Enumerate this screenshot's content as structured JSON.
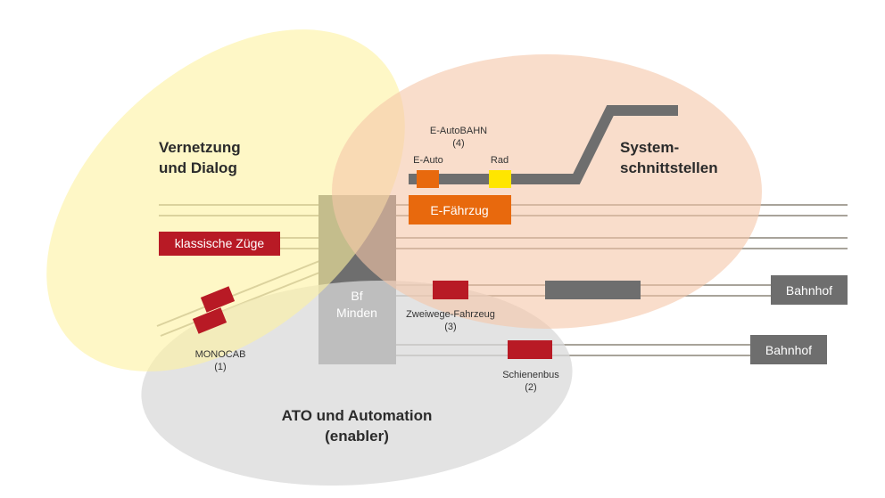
{
  "circles": {
    "vernetzung": {
      "line1": "Vernetzung",
      "line2": "und Dialog",
      "color": "#fdf5b0"
    },
    "system": {
      "line1": "System-",
      "line2": "schnittstellen",
      "color": "#f8d4bd"
    },
    "ato": {
      "line1": "ATO und Automation",
      "line2": "(enabler)",
      "color": "#d9d9d9"
    }
  },
  "station": {
    "line1": "Bf",
    "line2": "Minden"
  },
  "vehicles": {
    "klassisch": "klassische Züge",
    "efaehrzug": "E-Fährzug",
    "eauto": "E-Auto",
    "rad": "Rad",
    "eautobahn": {
      "line1": "E-AutoBAHN",
      "line2": "(4)"
    },
    "monocab": {
      "line1": "MONOCAB",
      "line2": "(1)"
    },
    "zweiwege": {
      "line1": "Zweiwege-Fahrzeug",
      "line2": "(3)"
    },
    "schienenbus": {
      "line1": "Schienenbus",
      "line2": "(2)"
    }
  },
  "bahnhof1": "Bahnhof",
  "bahnhof2": "Bahnhof",
  "colors": {
    "red": "#b81a25",
    "orange": "#e8690d",
    "yellow": "#ffe600",
    "gray": "#6e6e6e",
    "rail": "#9a9a9a"
  }
}
